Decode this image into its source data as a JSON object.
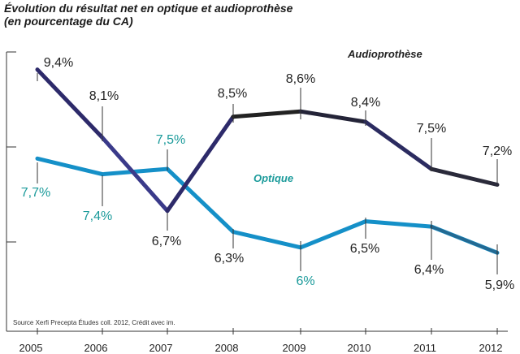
{
  "chart_data": {
    "type": "line",
    "title_line1": "Évolution du résultat net en optique et audioprothèse",
    "title_line2": "(en pourcentage du CA)",
    "x": [
      "2005",
      "2006",
      "2007",
      "2008",
      "2009",
      "2010",
      "2011",
      "2012"
    ],
    "series": [
      {
        "name": "Audioprothèse",
        "values": [
          9.4,
          8.1,
          6.7,
          8.5,
          8.6,
          8.4,
          7.5,
          7.2
        ],
        "labels": [
          "9,4%",
          "8,1%",
          "6,7%",
          "8,5%",
          "8,6%",
          "8,4%",
          "7,5%",
          "7,2%"
        ],
        "color": "#2a2a3a",
        "accent_color": "#3a3a8a",
        "label_color": "#222222"
      },
      {
        "name": "Optique",
        "values": [
          7.7,
          7.4,
          7.5,
          6.3,
          6.0,
          6.5,
          6.4,
          5.9
        ],
        "labels": [
          "7,7%",
          "7,4%",
          "7,5%",
          "6,3%",
          "6%",
          "6,5%",
          "6,4%",
          "5,9%"
        ],
        "color": "#1590c8",
        "accent_color": "#3a3a3a",
        "label_color_teal": "#1a9a9a",
        "label_color_dark": "#222222"
      }
    ],
    "ylim": [
      4.4,
      10
    ],
    "grid": false,
    "xlabel": "",
    "ylabel": "",
    "source": "Source Xerfi Precepta Études coll. 2012, Crédit avec im."
  }
}
